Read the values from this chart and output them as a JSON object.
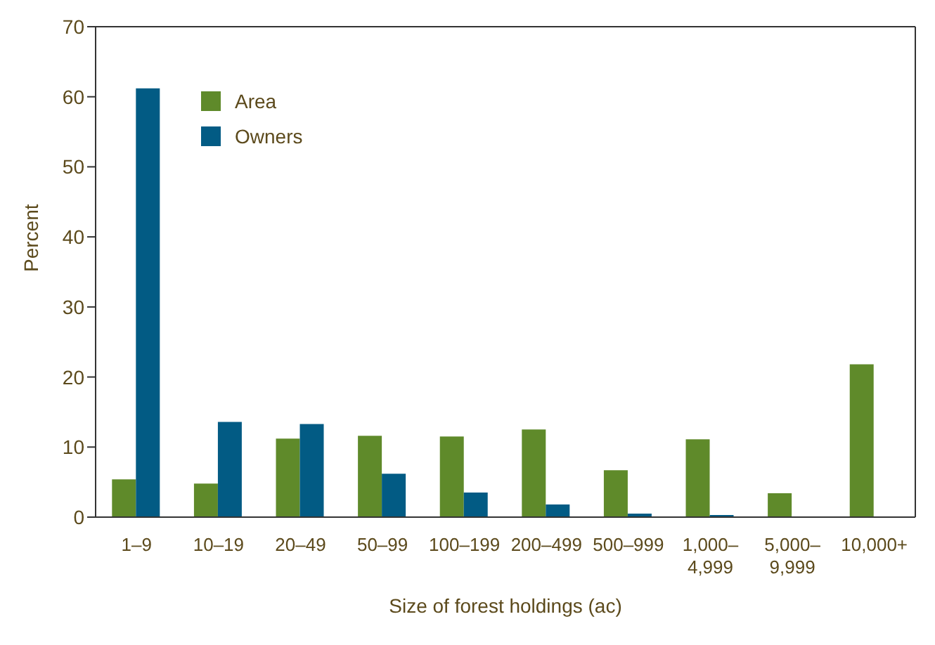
{
  "chart_data": {
    "type": "bar",
    "xlabel": "Size of forest holdings (ac)",
    "ylabel": "Percent",
    "categories": [
      "1–9",
      "10–19",
      "20–49",
      "50–99",
      "100–199",
      "200–499",
      "500–999",
      "1,000–4,999",
      "5,000–9,999",
      "10,000+"
    ],
    "series": [
      {
        "name": "Area",
        "color": "#5f8a2a",
        "values": [
          5.4,
          4.8,
          11.2,
          11.6,
          11.5,
          12.5,
          6.7,
          11.1,
          3.4,
          21.8
        ]
      },
      {
        "name": "Owners",
        "color": "#025b84",
        "values": [
          61.2,
          13.6,
          13.3,
          6.2,
          3.5,
          1.8,
          0.5,
          0.3,
          0.1,
          0.1
        ]
      }
    ],
    "ylim": [
      0,
      70
    ],
    "yticks": [
      0,
      10,
      20,
      30,
      40,
      50,
      60,
      70
    ],
    "grid": false,
    "legend": "top left"
  }
}
